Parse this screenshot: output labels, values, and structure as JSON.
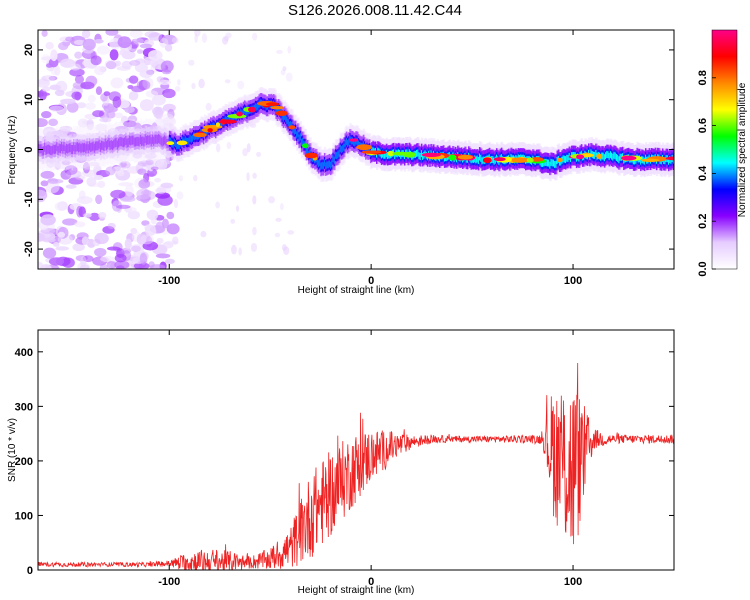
{
  "title": "S126.2026.008.11.42.C44",
  "chart_data": [
    {
      "type": "heatmap",
      "title": "",
      "xlabel": "Height of straight line (km)",
      "ylabel": "Frequency (Hz)",
      "xlim": [
        -165,
        150
      ],
      "ylim": [
        -24,
        24
      ],
      "xticks": [
        -100,
        0,
        100
      ],
      "xtick_labels": [
        "-100",
        "0",
        "100"
      ],
      "yticks": [
        -20,
        -10,
        0,
        10,
        20
      ],
      "ytick_labels": [
        "-20",
        "-10",
        "0",
        "10",
        "20"
      ],
      "colorbar": {
        "label": "Normalized spectral amplitude",
        "range": [
          0,
          1
        ],
        "ticks": [
          0.0,
          0.2,
          0.4,
          0.6,
          0.8
        ],
        "tick_labels": [
          "0.0",
          "0.2",
          "0.4",
          "0.6",
          "0.8"
        ],
        "colormap": [
          "#ffffff",
          "#e6ccff",
          "#8800ff",
          "#0000ff",
          "#00ffff",
          "#00ff00",
          "#ffff00",
          "#ff8800",
          "#ff0000",
          "#ff0088"
        ]
      },
      "ridge": {
        "x": [
          -165,
          -140,
          -120,
          -105,
          -95,
          -85,
          -75,
          -65,
          -55,
          -48,
          -42,
          -36,
          -30,
          -25,
          -20,
          -15,
          -10,
          -5,
          0,
          10,
          20,
          40,
          60,
          80,
          85,
          90,
          95,
          100,
          110,
          120,
          130,
          150
        ],
        "y": [
          0,
          0.5,
          1.5,
          2,
          1,
          3,
          5,
          7,
          9,
          9,
          6,
          3,
          -1,
          -3,
          -3,
          0,
          2,
          1,
          -0.5,
          -1,
          -1,
          -1.5,
          -2,
          -2,
          -2.5,
          -3,
          -2,
          -1.5,
          -1,
          -1.5,
          -2,
          -2
        ]
      }
    },
    {
      "type": "line",
      "title": "",
      "xlabel": "Height of straight line (km)",
      "ylabel": "SNR (10 * v/v)",
      "xlim": [
        -165,
        150
      ],
      "ylim": [
        0,
        440
      ],
      "xticks": [
        -100,
        0,
        100
      ],
      "xtick_labels": [
        "-100",
        "0",
        "100"
      ],
      "yticks": [
        0,
        100,
        200,
        300,
        400
      ],
      "ytick_labels": [
        "0",
        "100",
        "200",
        "300",
        "400"
      ],
      "series_color": "#ee2222",
      "envelope": {
        "x": [
          -165,
          -110,
          -100,
          -90,
          -80,
          -70,
          -60,
          -50,
          -40,
          -30,
          -20,
          -10,
          0,
          10,
          20,
          30,
          40,
          60,
          80,
          85,
          90,
          100,
          110,
          120,
          130,
          150
        ],
        "baseline": [
          10,
          10,
          12,
          15,
          15,
          15,
          14,
          20,
          40,
          100,
          140,
          180,
          210,
          225,
          235,
          240,
          240,
          240,
          240,
          240,
          220,
          180,
          240,
          240,
          240,
          240
        ],
        "noise": [
          4,
          4,
          6,
          20,
          25,
          20,
          12,
          20,
          40,
          80,
          80,
          70,
          50,
          30,
          12,
          8,
          6,
          6,
          8,
          10,
          120,
          180,
          20,
          8,
          8,
          8
        ]
      }
    }
  ]
}
